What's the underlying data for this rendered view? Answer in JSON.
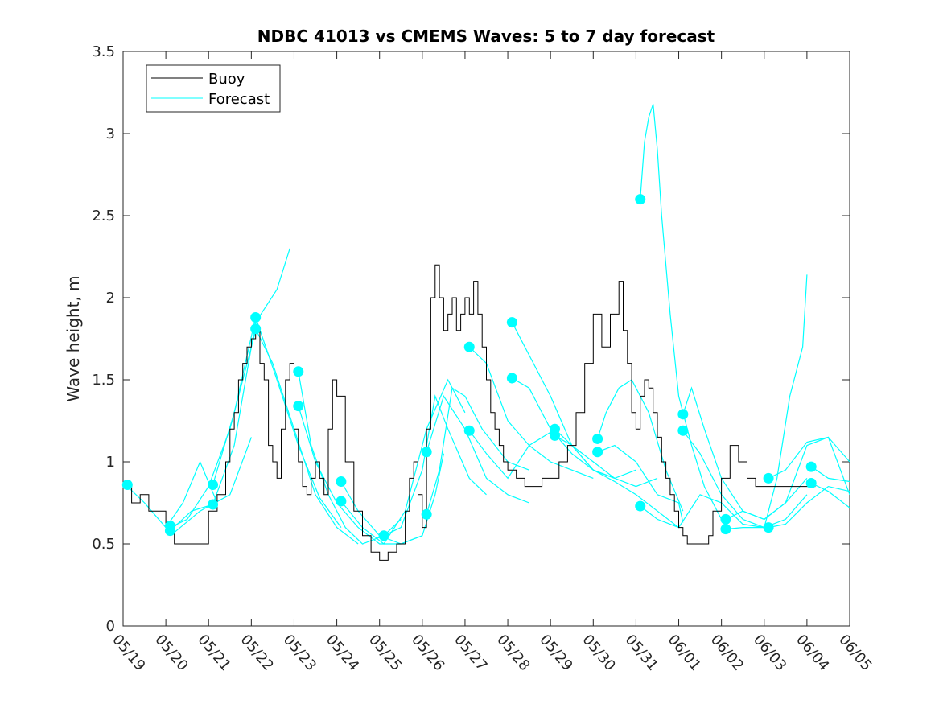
{
  "chart_data": {
    "type": "line",
    "title": "NDBC 41013 vs CMEMS Waves: 5 to 7 day forecast",
    "xlabel": "",
    "ylabel": "Wave height, m",
    "xlim": [
      0,
      17
    ],
    "ylim": [
      0,
      3.5
    ],
    "x_tick_labels": [
      "05/19",
      "05/20",
      "05/21",
      "05/22",
      "05/23",
      "05/24",
      "05/25",
      "05/26",
      "05/27",
      "05/28",
      "05/29",
      "05/30",
      "05/31",
      "06/01",
      "06/02",
      "06/03",
      "06/04",
      "06/05"
    ],
    "y_ticks": [
      0,
      0.5,
      1,
      1.5,
      2,
      2.5,
      3,
      3.5
    ],
    "y_tick_labels": [
      "0",
      "0.5",
      "1",
      "1.5",
      "2",
      "2.5",
      "3",
      "3.5"
    ],
    "grid": false,
    "legend_position": "top-left",
    "colors": {
      "buoy": "#000000",
      "forecast": "#00ffff"
    },
    "series": [
      {
        "name": "Buoy",
        "x": [
          0,
          0.2,
          0.4,
          0.6,
          0.8,
          1.0,
          1.2,
          1.5,
          1.8,
          2.0,
          2.2,
          2.4,
          2.5,
          2.6,
          2.7,
          2.8,
          2.9,
          3.0,
          3.1,
          3.2,
          3.3,
          3.4,
          3.5,
          3.6,
          3.7,
          3.8,
          3.9,
          4.0,
          4.1,
          4.2,
          4.3,
          4.4,
          4.5,
          4.6,
          4.7,
          4.8,
          4.9,
          5.0,
          5.2,
          5.4,
          5.6,
          5.8,
          6.0,
          6.2,
          6.4,
          6.6,
          6.7,
          6.8,
          6.9,
          7.0,
          7.1,
          7.2,
          7.3,
          7.4,
          7.5,
          7.6,
          7.7,
          7.8,
          7.9,
          8.0,
          8.1,
          8.2,
          8.3,
          8.4,
          8.5,
          8.6,
          8.7,
          8.8,
          8.9,
          9.0,
          9.2,
          9.4,
          9.6,
          9.8,
          10.0,
          10.2,
          10.4,
          10.6,
          10.8,
          11.0,
          11.2,
          11.4,
          11.6,
          11.7,
          11.8,
          11.9,
          12.0,
          12.1,
          12.2,
          12.3,
          12.4,
          12.5,
          12.6,
          12.7,
          12.8,
          12.9,
          13.0,
          13.1,
          13.2,
          13.3,
          13.4,
          13.5,
          13.6,
          13.7,
          13.8,
          14.0,
          14.2,
          14.4,
          14.6,
          14.8,
          15.0,
          15.2,
          15.4,
          15.6,
          15.8,
          16.0,
          16.1,
          16.2
        ],
        "y": [
          0.85,
          0.75,
          0.8,
          0.7,
          0.7,
          0.6,
          0.5,
          0.5,
          0.5,
          0.7,
          0.8,
          1.0,
          1.2,
          1.3,
          1.5,
          1.6,
          1.7,
          1.75,
          1.8,
          1.6,
          1.5,
          1.1,
          1.0,
          0.9,
          1.2,
          1.5,
          1.6,
          1.2,
          1.0,
          0.85,
          0.8,
          0.9,
          1.0,
          0.9,
          0.8,
          1.2,
          1.5,
          1.4,
          1.0,
          0.7,
          0.55,
          0.45,
          0.4,
          0.45,
          0.5,
          0.7,
          0.9,
          1.0,
          0.8,
          0.6,
          1.2,
          2.0,
          2.2,
          2.0,
          1.8,
          1.9,
          2.0,
          1.8,
          1.9,
          2.0,
          1.9,
          2.1,
          1.9,
          1.7,
          1.5,
          1.3,
          1.2,
          1.1,
          1.0,
          0.95,
          0.9,
          0.85,
          0.85,
          0.9,
          0.9,
          1.0,
          1.1,
          1.3,
          1.6,
          1.9,
          1.7,
          1.9,
          2.1,
          1.8,
          1.6,
          1.3,
          1.2,
          1.4,
          1.5,
          1.45,
          1.3,
          1.15,
          1.0,
          0.9,
          0.8,
          0.7,
          0.6,
          0.55,
          0.5,
          0.5,
          0.5,
          0.5,
          0.5,
          0.55,
          0.7,
          0.9,
          1.1,
          1.0,
          0.9,
          0.85,
          0.85,
          0.85,
          0.85,
          0.85,
          0.85,
          0.85,
          0.85,
          0.85
        ]
      },
      {
        "name": "Forecast",
        "segments": [
          {
            "x": [
              0.1,
              0.5,
              1.0,
              1.4,
              1.8,
              2.2
            ],
            "y": [
              0.85,
              0.75,
              0.6,
              0.75,
              1.0,
              0.75
            ]
          },
          {
            "x": [
              1.1,
              1.5,
              2.0,
              2.5,
              3.0,
              3.1
            ],
            "y": [
              0.6,
              0.65,
              0.85,
              1.2,
              1.7,
              1.8
            ]
          },
          {
            "x": [
              1.1,
              1.6,
              2.1,
              2.6,
              3.1,
              3.6,
              3.9
            ],
            "y": [
              0.58,
              0.7,
              0.74,
              1.1,
              1.85,
              2.05,
              2.3
            ]
          },
          {
            "x": [
              1.2,
              1.8,
              2.5,
              3.0
            ],
            "y": [
              0.57,
              0.7,
              0.8,
              1.15
            ]
          },
          {
            "x": [
              2.1,
              2.6,
              3.1,
              3.6,
              4.1,
              4.6,
              5.1
            ],
            "y": [
              0.86,
              1.3,
              1.88,
              1.5,
              1.1,
              0.78,
              0.6
            ]
          },
          {
            "x": [
              3.1,
              3.5,
              4.0,
              4.5,
              5.0,
              5.5
            ],
            "y": [
              1.81,
              1.6,
              1.2,
              0.8,
              0.6,
              0.5
            ]
          },
          {
            "x": [
              4.1,
              4.4,
              4.8,
              5.2,
              5.6,
              6.1,
              6.5
            ],
            "y": [
              1.55,
              1.1,
              0.8,
              0.6,
              0.5,
              0.55,
              0.65
            ]
          },
          {
            "x": [
              4.1,
              4.5,
              5.0,
              5.5,
              6.0,
              6.5,
              7.0
            ],
            "y": [
              1.34,
              1.0,
              0.75,
              0.6,
              0.5,
              0.5,
              0.55
            ]
          },
          {
            "x": [
              5.1,
              5.5,
              6.0,
              6.5,
              7.0,
              7.3,
              7.5
            ],
            "y": [
              0.88,
              0.7,
              0.55,
              0.5,
              0.55,
              0.8,
              1.05
            ]
          },
          {
            "x": [
              5.1,
              5.6,
              6.1,
              6.6,
              7.1,
              7.6,
              8.0
            ],
            "y": [
              0.76,
              0.6,
              0.5,
              0.7,
              1.2,
              1.5,
              1.3
            ]
          },
          {
            "x": [
              6.1,
              6.5,
              7.0,
              7.3,
              7.6,
              8.1,
              8.5
            ],
            "y": [
              0.55,
              0.6,
              0.95,
              1.4,
              1.2,
              0.9,
              0.8
            ]
          },
          {
            "x": [
              7.1,
              7.4,
              7.7,
              8.0,
              8.4,
              9.0,
              9.5
            ],
            "y": [
              0.68,
              0.95,
              1.45,
              1.4,
              1.2,
              1.0,
              0.95
            ]
          },
          {
            "x": [
              7.1,
              7.5,
              8.0,
              8.5,
              9.0,
              9.5
            ],
            "y": [
              1.06,
              1.4,
              1.2,
              0.9,
              0.8,
              0.75
            ]
          },
          {
            "x": [
              8.1,
              8.5,
              9.0,
              9.5,
              10.0,
              10.5,
              11.0
            ],
            "y": [
              1.7,
              1.6,
              1.25,
              1.1,
              1.0,
              0.95,
              0.9
            ]
          },
          {
            "x": [
              8.1,
              8.5,
              9.0,
              9.5,
              10.0,
              10.2
            ],
            "y": [
              1.19,
              1.05,
              0.9,
              1.1,
              1.18,
              1.2
            ]
          },
          {
            "x": [
              9.1,
              9.5,
              10.0,
              10.5,
              11.0,
              11.5,
              12.0
            ],
            "y": [
              1.85,
              1.65,
              1.4,
              1.1,
              0.95,
              0.9,
              0.95
            ]
          },
          {
            "x": [
              9.1,
              9.5,
              10.0,
              10.5,
              11.0,
              11.5
            ],
            "y": [
              1.51,
              1.45,
              1.2,
              1.05,
              0.95,
              0.9
            ]
          },
          {
            "x": [
              10.1,
              10.5,
              11.0,
              11.5,
              12.0,
              12.5,
              13.0
            ],
            "y": [
              1.2,
              1.1,
              0.95,
              0.88,
              0.8,
              0.7,
              0.6
            ]
          },
          {
            "x": [
              10.1,
              10.5,
              11.0,
              11.5,
              12.0,
              12.5
            ],
            "y": [
              1.16,
              1.1,
              1.0,
              0.9,
              0.85,
              0.9
            ]
          },
          {
            "x": [
              11.1,
              11.3,
              11.6,
              11.9,
              12.3,
              12.7,
              13.1
            ],
            "y": [
              1.14,
              1.3,
              1.45,
              1.5,
              1.3,
              0.95,
              0.7
            ]
          },
          {
            "x": [
              11.1,
              11.5,
              12.0,
              12.5,
              13.0,
              13.1
            ],
            "y": [
              1.06,
              1.1,
              1.0,
              0.8,
              0.75,
              0.63
            ]
          },
          {
            "x": [
              12.1,
              12.5,
              13.0,
              13.5,
              14.0,
              14.5,
              15.0
            ],
            "y": [
              0.73,
              0.65,
              0.6,
              0.8,
              0.75,
              0.62,
              0.6
            ]
          },
          {
            "x": [
              12.1,
              12.2,
              12.3,
              12.4,
              12.5,
              12.6,
              12.8,
              13.0,
              13.3,
              13.6,
              14.0
            ],
            "y": [
              2.6,
              2.95,
              3.1,
              3.18,
              2.9,
              2.5,
              1.9,
              1.4,
              1.1,
              0.85,
              0.65
            ]
          },
          {
            "x": [
              13.1,
              13.3,
              13.6,
              14.0,
              14.5,
              15.0,
              15.5,
              16.0
            ],
            "y": [
              1.29,
              1.45,
              1.2,
              0.9,
              0.7,
              0.65,
              0.75,
              0.9
            ]
          },
          {
            "x": [
              13.1,
              13.5,
              14.0,
              14.5,
              15.0,
              15.5,
              16.0
            ],
            "y": [
              1.19,
              1.05,
              0.8,
              0.65,
              0.6,
              0.65,
              0.8
            ]
          },
          {
            "x": [
              14.1,
              14.5,
              15.0,
              15.5,
              16.0,
              16.5,
              17.0
            ],
            "y": [
              0.65,
              0.7,
              0.65,
              0.75,
              1.1,
              1.15,
              1.0
            ]
          },
          {
            "x": [
              14.1,
              14.5,
              15.0,
              15.3,
              15.6,
              15.9,
              16.0
            ],
            "y": [
              0.59,
              0.6,
              0.6,
              0.9,
              1.4,
              1.7,
              2.14
            ]
          },
          {
            "x": [
              15.1,
              15.5,
              16.0,
              16.5,
              17.0
            ],
            "y": [
              0.9,
              0.95,
              1.12,
              1.15,
              0.8
            ]
          },
          {
            "x": [
              15.1,
              15.5,
              16.0,
              16.5,
              17.0
            ],
            "y": [
              0.6,
              0.62,
              0.75,
              0.85,
              0.82
            ]
          },
          {
            "x": [
              16.1,
              16.5,
              17.0
            ],
            "y": [
              0.97,
              0.9,
              0.88
            ]
          },
          {
            "x": [
              16.1,
              16.5,
              17.0
            ],
            "y": [
              0.87,
              0.82,
              0.72
            ]
          }
        ],
        "markers": [
          {
            "x": 0.1,
            "y": 0.86
          },
          {
            "x": 1.1,
            "y": 0.61
          },
          {
            "x": 1.1,
            "y": 0.58
          },
          {
            "x": 2.1,
            "y": 0.86
          },
          {
            "x": 2.1,
            "y": 0.74
          },
          {
            "x": 3.1,
            "y": 1.88
          },
          {
            "x": 3.1,
            "y": 1.81
          },
          {
            "x": 4.1,
            "y": 1.55
          },
          {
            "x": 4.1,
            "y": 1.34
          },
          {
            "x": 5.1,
            "y": 0.88
          },
          {
            "x": 5.1,
            "y": 0.76
          },
          {
            "x": 6.1,
            "y": 0.55
          },
          {
            "x": 7.1,
            "y": 1.06
          },
          {
            "x": 7.1,
            "y": 0.68
          },
          {
            "x": 8.1,
            "y": 1.7
          },
          {
            "x": 8.1,
            "y": 1.19
          },
          {
            "x": 9.1,
            "y": 1.85
          },
          {
            "x": 9.1,
            "y": 1.51
          },
          {
            "x": 10.1,
            "y": 1.2
          },
          {
            "x": 10.1,
            "y": 1.16
          },
          {
            "x": 11.1,
            "y": 1.14
          },
          {
            "x": 11.1,
            "y": 1.06
          },
          {
            "x": 12.1,
            "y": 2.6
          },
          {
            "x": 12.1,
            "y": 0.73
          },
          {
            "x": 13.1,
            "y": 1.29
          },
          {
            "x": 13.1,
            "y": 1.19
          },
          {
            "x": 14.1,
            "y": 0.65
          },
          {
            "x": 14.1,
            "y": 0.59
          },
          {
            "x": 15.1,
            "y": 0.9
          },
          {
            "x": 15.1,
            "y": 0.6
          },
          {
            "x": 16.1,
            "y": 0.97
          },
          {
            "x": 16.1,
            "y": 0.87
          }
        ]
      }
    ]
  }
}
